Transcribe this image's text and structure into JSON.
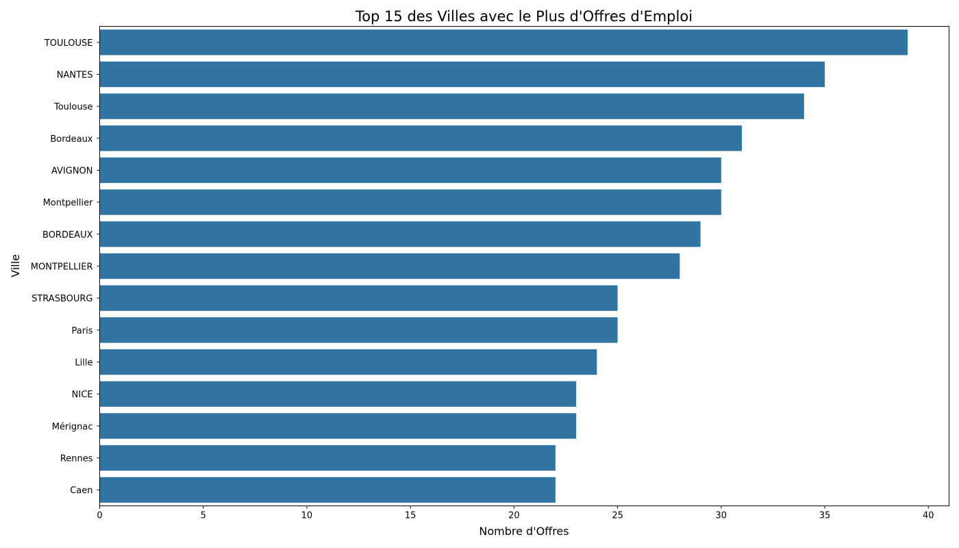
{
  "chart_data": {
    "type": "bar",
    "orientation": "horizontal",
    "title": "Top 15 des Villes avec le Plus d'Offres d'Emploi",
    "xlabel": "Nombre d'Offres",
    "ylabel": "Ville",
    "categories": [
      "TOULOUSE",
      "NANTES",
      "Toulouse",
      "Bordeaux",
      "AVIGNON",
      "Montpellier",
      "BORDEAUX",
      "MONTPELLIER",
      "STRASBOURG",
      "Paris",
      "Lille",
      "NICE",
      "Mérignac",
      "Rennes",
      "Caen"
    ],
    "values": [
      39,
      35,
      34,
      31,
      30,
      30,
      29,
      28,
      25,
      25,
      24,
      23,
      23,
      22,
      22
    ],
    "xlim": [
      0,
      41
    ],
    "xticks": [
      "0",
      "5",
      "10",
      "15",
      "20",
      "25",
      "30",
      "35",
      "40"
    ],
    "grid": false,
    "legend": "none",
    "bar_color": "#3274a1"
  }
}
